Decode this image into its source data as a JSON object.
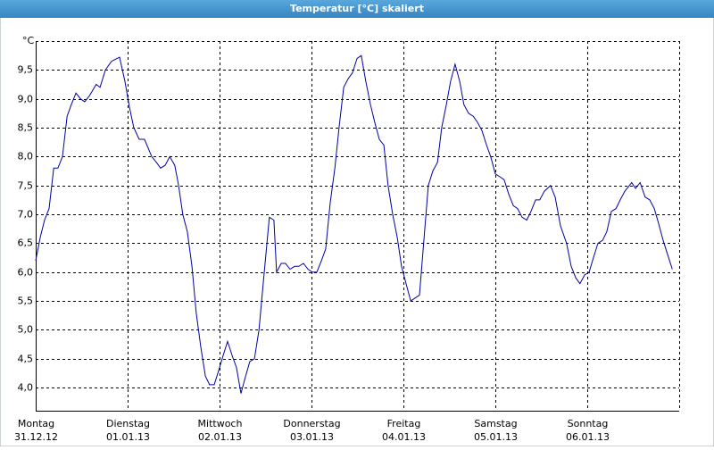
{
  "chart_data": {
    "type": "line",
    "title": "Temperatur [°C] skaliert",
    "y_label": "°C",
    "xlim": [
      0,
      168
    ],
    "ylim": [
      3.6,
      10.0
    ],
    "xticks": [
      {
        "value": 0,
        "label": "Montag"
      },
      {
        "value": 24,
        "label": "Dienstag"
      },
      {
        "value": 48,
        "label": "Mittwoch"
      },
      {
        "value": 72,
        "label": "Donnerstag"
      },
      {
        "value": 96,
        "label": "Freitag"
      },
      {
        "value": 120,
        "label": "Samstag"
      },
      {
        "value": 144,
        "label": "Sonntag"
      }
    ],
    "xtick_dates": [
      "31.12.12",
      "01.01.13",
      "02.01.13",
      "03.01.13",
      "04.01.13",
      "05.01.13",
      "06.01.13"
    ],
    "yticks": [
      {
        "value": 4.0,
        "label": "4,0"
      },
      {
        "value": 4.5,
        "label": "4,5"
      },
      {
        "value": 5.0,
        "label": "5,0"
      },
      {
        "value": 5.5,
        "label": "5,5"
      },
      {
        "value": 6.0,
        "label": "6,0"
      },
      {
        "value": 6.5,
        "label": "6,5"
      },
      {
        "value": 7.0,
        "label": "7,0"
      },
      {
        "value": 7.5,
        "label": "7,5"
      },
      {
        "value": 8.0,
        "label": "8,0"
      },
      {
        "value": 8.5,
        "label": "8,5"
      },
      {
        "value": 9.0,
        "label": "9,0"
      },
      {
        "value": 9.5,
        "label": "9,5"
      }
    ],
    "grid": true,
    "x": [
      0,
      1.2,
      2.3,
      3.5,
      4.7,
      5.8,
      7.0,
      8.2,
      9.3,
      10.5,
      11.7,
      12.8,
      14.0,
      15.8,
      16.8,
      18.2,
      19.8,
      21.9,
      23.3,
      24.5,
      25.6,
      27.0,
      28.4,
      30.3,
      31.5,
      32.6,
      33.8,
      35.0,
      36.3,
      37.3,
      38.4,
      39.6,
      40.8,
      41.9,
      43.1,
      44.3,
      45.4,
      46.6,
      47.8,
      48.9,
      50.1,
      51.3,
      52.4,
      53.6,
      54.8,
      55.9,
      57.1,
      58.3,
      59.4,
      61.0,
      62.2,
      62.9,
      64.1,
      65.2,
      66.4,
      67.6,
      68.7,
      69.9,
      71.1,
      72.2,
      73.4,
      74.6,
      75.7,
      76.9,
      78.1,
      79.2,
      80.4,
      81.6,
      82.7,
      83.9,
      85.0,
      86.2,
      87.4,
      88.5,
      89.7,
      90.9,
      92.0,
      93.2,
      94.4,
      95.5,
      96.7,
      97.9,
      99.0,
      100.2,
      101.4,
      102.5,
      103.7,
      104.9,
      106.0,
      107.2,
      108.3,
      109.5,
      110.7,
      111.8,
      113.0,
      114.2,
      115.3,
      116.5,
      117.7,
      118.8,
      120.0,
      121.2,
      122.3,
      123.5,
      124.7,
      125.8,
      127.0,
      128.2,
      129.3,
      130.5,
      131.6,
      132.8,
      134.4,
      135.6,
      137.0,
      138.6,
      139.8,
      141.0,
      142.1,
      143.3,
      144.5,
      145.6,
      146.8,
      148.0,
      149.1,
      150.3,
      151.5,
      152.6,
      153.8,
      155.6,
      156.6,
      157.8,
      159.1,
      160.3,
      161.5,
      162.6,
      163.8,
      165.0,
      166.2
    ],
    "series": [
      {
        "color": "#0000a0",
        "values": [
          6.2,
          6.6,
          6.9,
          7.1,
          7.8,
          7.8,
          8.0,
          8.7,
          8.9,
          9.1,
          9.0,
          8.95,
          9.05,
          9.25,
          9.2,
          9.5,
          9.65,
          9.72,
          9.3,
          8.85,
          8.5,
          8.3,
          8.3,
          8.0,
          7.9,
          7.8,
          7.85,
          8.0,
          7.85,
          7.5,
          7.0,
          6.7,
          6.1,
          5.3,
          4.7,
          4.2,
          4.05,
          4.05,
          4.3,
          4.55,
          4.8,
          4.55,
          4.35,
          3.9,
          4.2,
          4.45,
          4.5,
          5.0,
          5.8,
          6.95,
          6.9,
          6.0,
          6.15,
          6.15,
          6.05,
          6.1,
          6.1,
          6.15,
          6.05,
          6.0,
          6.0,
          6.2,
          6.4,
          7.2,
          7.8,
          8.5,
          9.2,
          9.35,
          9.45,
          9.7,
          9.75,
          9.3,
          8.9,
          8.6,
          8.3,
          8.2,
          7.5,
          7.0,
          6.6,
          6.1,
          5.8,
          5.5,
          5.55,
          5.6,
          6.6,
          7.5,
          7.75,
          7.9,
          8.5,
          8.9,
          9.3,
          9.6,
          9.3,
          8.9,
          8.75,
          8.7,
          8.6,
          8.45,
          8.2,
          8.0,
          7.7,
          7.65,
          7.6,
          7.35,
          7.15,
          7.1,
          6.95,
          6.9,
          7.05,
          7.25,
          7.25,
          7.4,
          7.5,
          7.3,
          6.8,
          6.5,
          6.1,
          5.9,
          5.8,
          5.95,
          6.0,
          6.25,
          6.5,
          6.55,
          6.7,
          7.05,
          7.1,
          7.25,
          7.4,
          7.55,
          7.45,
          7.55,
          7.3,
          7.25,
          7.1,
          6.85,
          6.55,
          6.3,
          6.05
        ]
      }
    ]
  }
}
